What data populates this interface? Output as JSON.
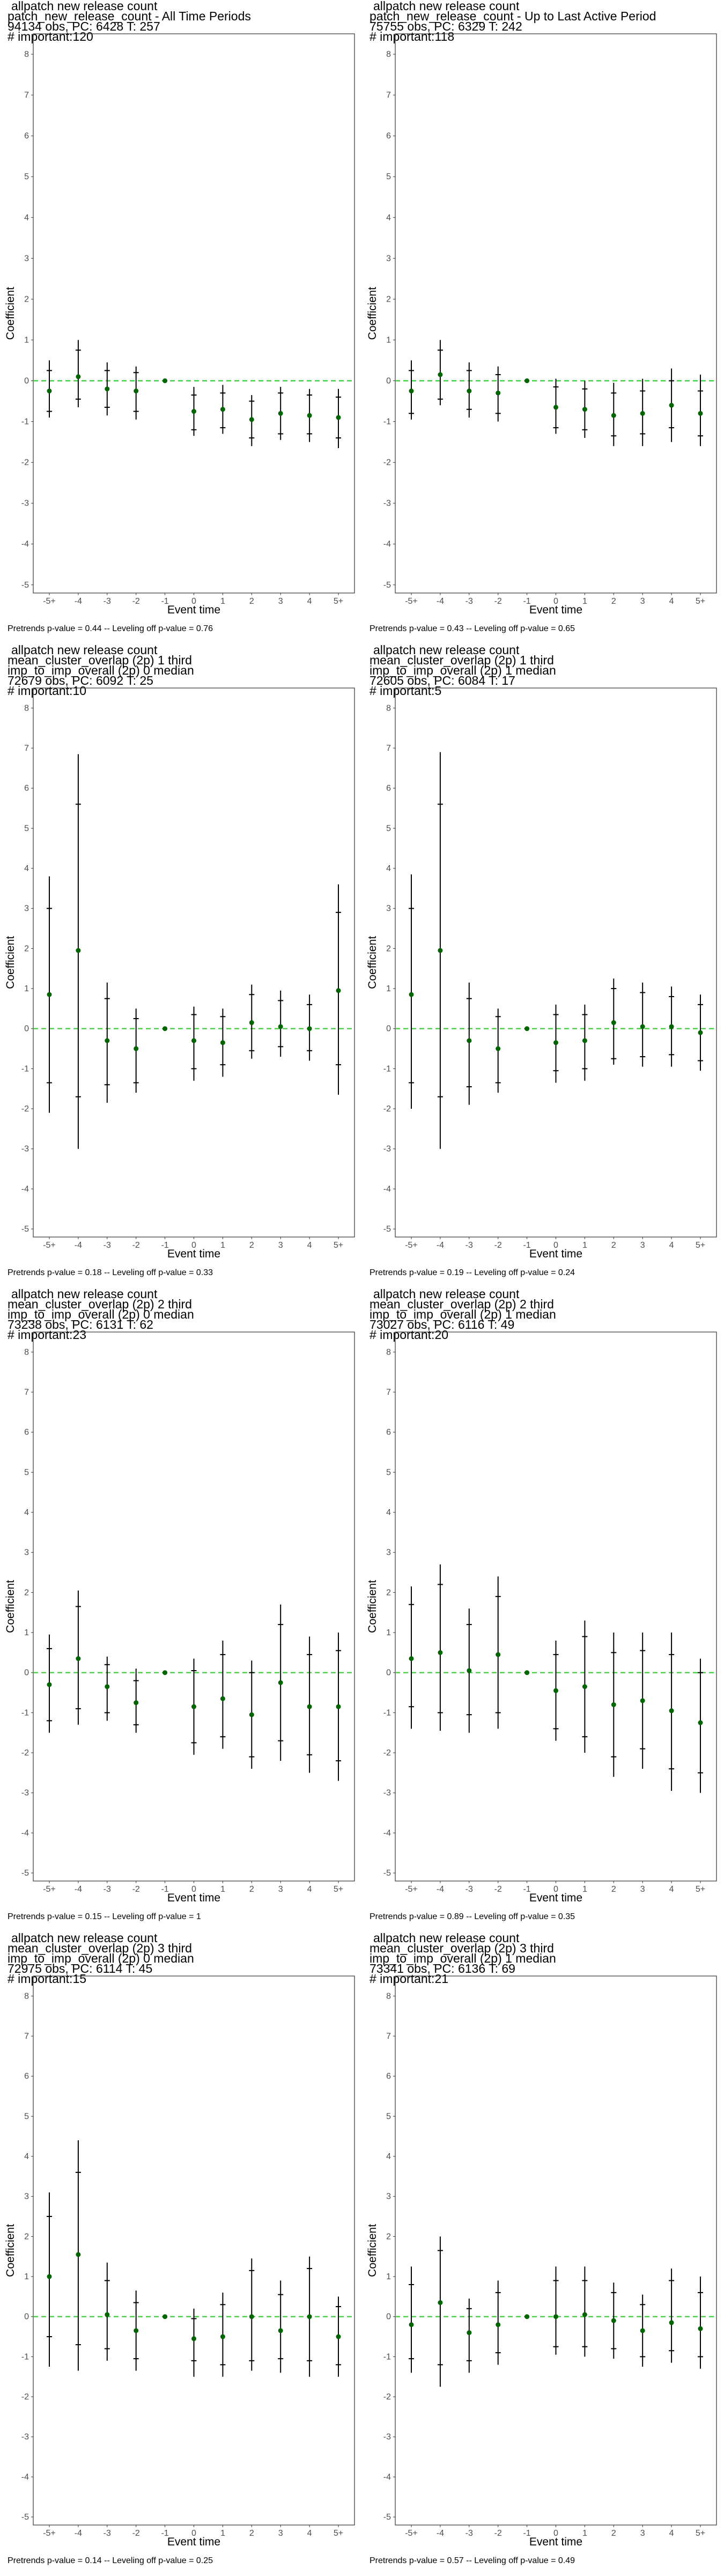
{
  "chart_data": [
    {
      "type": "scatter",
      "title_lines": [
        "allpatch new release count",
        "patch_new_release_count - All Time Periods",
        "94134 obs, PC: 6428 T: 257",
        "# important:120"
      ],
      "xlabel": "Event time",
      "ylabel": "Coefficient",
      "x": [
        "-5+",
        "-4",
        "-3",
        "-2",
        "-1",
        "0",
        "1",
        "2",
        "3",
        "4",
        "5+"
      ],
      "y": [
        -0.25,
        0.1,
        -0.2,
        -0.25,
        0.0,
        -0.75,
        -0.7,
        -0.95,
        -0.8,
        -0.85,
        -0.9
      ],
      "ci_outer": [
        [
          -0.9,
          0.5
        ],
        [
          -0.65,
          1.0
        ],
        [
          -0.85,
          0.45
        ],
        [
          -0.95,
          0.35
        ],
        [
          0,
          0
        ],
        [
          -1.35,
          -0.15
        ],
        [
          -1.3,
          -0.1
        ],
        [
          -1.6,
          -0.35
        ],
        [
          -1.45,
          -0.15
        ],
        [
          -1.5,
          -0.2
        ],
        [
          -1.65,
          -0.2
        ]
      ],
      "ci_inner": [
        [
          -0.75,
          0.25
        ],
        [
          -0.45,
          0.75
        ],
        [
          -0.65,
          0.25
        ],
        [
          -0.75,
          0.2
        ],
        [
          0,
          0
        ],
        [
          -1.2,
          -0.35
        ],
        [
          -1.15,
          -0.3
        ],
        [
          -1.4,
          -0.5
        ],
        [
          -1.3,
          -0.3
        ],
        [
          -1.3,
          -0.35
        ],
        [
          -1.4,
          -0.4
        ]
      ],
      "ylim": [
        -5.2,
        8.5
      ],
      "yticks": [
        -5,
        -4,
        -3,
        -2,
        -1,
        0,
        1,
        2,
        3,
        4,
        5,
        6,
        7,
        8
      ],
      "hline": 0,
      "hline_color": "#33cc33",
      "point_color": "#006400",
      "footer": "Pretrends p-value = 0.44 -- Leveling off p-value = 0.76"
    },
    {
      "type": "scatter",
      "title_lines": [
        "allpatch new release count",
        "patch_new_release_count - Up to Last Active Period",
        "75755 obs, PC: 6329 T: 242",
        "# important:118"
      ],
      "xlabel": "Event time",
      "ylabel": "Coefficient",
      "x": [
        "-5+",
        "-4",
        "-3",
        "-2",
        "-1",
        "0",
        "1",
        "2",
        "3",
        "4",
        "5+"
      ],
      "y": [
        -0.25,
        0.15,
        -0.25,
        -0.3,
        0.0,
        -0.65,
        -0.7,
        -0.85,
        -0.8,
        -0.6,
        -0.8
      ],
      "ci_outer": [
        [
          -0.95,
          0.5
        ],
        [
          -0.6,
          1.0
        ],
        [
          -0.9,
          0.45
        ],
        [
          -1.0,
          0.35
        ],
        [
          0,
          0
        ],
        [
          -1.3,
          0.05
        ],
        [
          -1.4,
          0.0
        ],
        [
          -1.6,
          -0.05
        ],
        [
          -1.6,
          0.05
        ],
        [
          -1.5,
          0.3
        ],
        [
          -1.6,
          0.15
        ]
      ],
      "ci_inner": [
        [
          -0.8,
          0.25
        ],
        [
          -0.45,
          0.75
        ],
        [
          -0.7,
          0.25
        ],
        [
          -0.8,
          0.15
        ],
        [
          0,
          0
        ],
        [
          -1.15,
          -0.15
        ],
        [
          -1.2,
          -0.2
        ],
        [
          -1.35,
          -0.3
        ],
        [
          -1.3,
          -0.25
        ],
        [
          -1.15,
          0.0
        ],
        [
          -1.35,
          -0.25
        ]
      ],
      "ylim": [
        -5.2,
        8.5
      ],
      "yticks": [
        -5,
        -4,
        -3,
        -2,
        -1,
        0,
        1,
        2,
        3,
        4,
        5,
        6,
        7,
        8
      ],
      "hline": 0,
      "hline_color": "#33cc33",
      "point_color": "#006400",
      "footer": "Pretrends p-value = 0.43 -- Leveling off p-value = 0.65"
    },
    {
      "type": "scatter",
      "title_lines": [
        "allpatch new release count",
        "mean_cluster_overlap (2p) 1 third",
        "imp_to_imp_overall (2p) 0 median",
        "72679 obs, PC: 6092 T: 25",
        "# important:10"
      ],
      "xlabel": "Event time",
      "ylabel": "Coefficient",
      "x": [
        "-5+",
        "-4",
        "-3",
        "-2",
        "-1",
        "0",
        "1",
        "2",
        "3",
        "4",
        "5+"
      ],
      "y": [
        0.85,
        1.95,
        -0.3,
        -0.5,
        0.0,
        -0.3,
        -0.35,
        0.15,
        0.05,
        0.0,
        0.95
      ],
      "ci_outer": [
        [
          -2.1,
          3.8
        ],
        [
          -3.0,
          6.85
        ],
        [
          -1.85,
          1.15
        ],
        [
          -1.6,
          0.5
        ],
        [
          0,
          0
        ],
        [
          -1.3,
          0.55
        ],
        [
          -1.2,
          0.5
        ],
        [
          -0.75,
          1.1
        ],
        [
          -0.7,
          0.95
        ],
        [
          -0.8,
          0.85
        ],
        [
          -1.65,
          3.6
        ]
      ],
      "ci_inner": [
        [
          -1.35,
          3.0
        ],
        [
          -1.7,
          5.6
        ],
        [
          -1.4,
          0.75
        ],
        [
          -1.35,
          0.25
        ],
        [
          0,
          0
        ],
        [
          -1.0,
          0.35
        ],
        [
          -0.9,
          0.3
        ],
        [
          -0.55,
          0.85
        ],
        [
          -0.45,
          0.7
        ],
        [
          -0.55,
          0.6
        ],
        [
          -0.9,
          2.9
        ]
      ],
      "ylim": [
        -5.2,
        8.5
      ],
      "yticks": [
        -5,
        -4,
        -3,
        -2,
        -1,
        0,
        1,
        2,
        3,
        4,
        5,
        6,
        7,
        8
      ],
      "hline": 0,
      "hline_color": "#33cc33",
      "point_color": "#006400",
      "footer": "Pretrends p-value = 0.18 -- Leveling off p-value = 0.33"
    },
    {
      "type": "scatter",
      "title_lines": [
        "allpatch new release count",
        "mean_cluster_overlap (2p) 1 third",
        "imp_to_imp_overall (2p) 1 median",
        "72605 obs, PC: 6084 T: 17",
        "# important:5"
      ],
      "xlabel": "Event time",
      "ylabel": "Coefficient",
      "x": [
        "-5+",
        "-4",
        "-3",
        "-2",
        "-1",
        "0",
        "1",
        "2",
        "3",
        "4",
        "5+"
      ],
      "y": [
        0.85,
        1.95,
        -0.3,
        -0.5,
        0.0,
        -0.35,
        -0.3,
        0.15,
        0.05,
        0.05,
        -0.1
      ],
      "ci_outer": [
        [
          -2.0,
          3.85
        ],
        [
          -3.0,
          6.9
        ],
        [
          -1.9,
          1.15
        ],
        [
          -1.6,
          0.5
        ],
        [
          0,
          0
        ],
        [
          -1.35,
          0.6
        ],
        [
          -1.3,
          0.6
        ],
        [
          -0.9,
          1.25
        ],
        [
          -0.95,
          1.15
        ],
        [
          -0.95,
          1.05
        ],
        [
          -1.05,
          0.85
        ]
      ],
      "ci_inner": [
        [
          -1.35,
          3.0
        ],
        [
          -1.7,
          5.6
        ],
        [
          -1.45,
          0.75
        ],
        [
          -1.35,
          0.3
        ],
        [
          0,
          0
        ],
        [
          -1.05,
          0.35
        ],
        [
          -1.0,
          0.35
        ],
        [
          -0.75,
          1.0
        ],
        [
          -0.7,
          0.9
        ],
        [
          -0.65,
          0.8
        ],
        [
          -0.8,
          0.6
        ]
      ],
      "ylim": [
        -5.2,
        8.5
      ],
      "yticks": [
        -5,
        -4,
        -3,
        -2,
        -1,
        0,
        1,
        2,
        3,
        4,
        5,
        6,
        7,
        8
      ],
      "hline": 0,
      "hline_color": "#33cc33",
      "point_color": "#006400",
      "footer": "Pretrends p-value = 0.19 -- Leveling off p-value = 0.24"
    },
    {
      "type": "scatter",
      "title_lines": [
        "allpatch new release count",
        "mean_cluster_overlap (2p) 2 third",
        "imp_to_imp_overall (2p) 0 median",
        "73238 obs, PC: 6131 T: 62",
        "# important:23"
      ],
      "xlabel": "Event time",
      "ylabel": "Coefficient",
      "x": [
        "-5+",
        "-4",
        "-3",
        "-2",
        "-1",
        "0",
        "1",
        "2",
        "3",
        "4",
        "5+"
      ],
      "y": [
        -0.3,
        0.35,
        -0.35,
        -0.75,
        0.0,
        -0.85,
        -0.65,
        -1.05,
        -0.25,
        -0.85,
        -0.85
      ],
      "ci_outer": [
        [
          -1.5,
          0.95
        ],
        [
          -1.3,
          2.05
        ],
        [
          -1.2,
          0.4
        ],
        [
          -1.5,
          0.1
        ],
        [
          0,
          0
        ],
        [
          -2.05,
          0.35
        ],
        [
          -1.9,
          0.8
        ],
        [
          -2.4,
          0.3
        ],
        [
          -2.2,
          1.7
        ],
        [
          -2.5,
          0.9
        ],
        [
          -2.7,
          1.0
        ]
      ],
      "ci_inner": [
        [
          -1.2,
          0.6
        ],
        [
          -0.9,
          1.65
        ],
        [
          -1.0,
          0.2
        ],
        [
          -1.3,
          -0.2
        ],
        [
          0,
          0
        ],
        [
          -1.75,
          0.05
        ],
        [
          -1.6,
          0.45
        ],
        [
          -2.1,
          0.0
        ],
        [
          -1.7,
          1.2
        ],
        [
          -2.05,
          0.45
        ],
        [
          -2.2,
          0.55
        ]
      ],
      "ylim": [
        -5.2,
        8.5
      ],
      "yticks": [
        -5,
        -4,
        -3,
        -2,
        -1,
        0,
        1,
        2,
        3,
        4,
        5,
        6,
        7,
        8
      ],
      "hline": 0,
      "hline_color": "#33cc33",
      "point_color": "#006400",
      "footer": "Pretrends p-value = 0.15 -- Leveling off p-value = 1"
    },
    {
      "type": "scatter",
      "title_lines": [
        "allpatch new release count",
        "mean_cluster_overlap (2p) 2 third",
        "imp_to_imp_overall (2p) 1 median",
        "73027 obs, PC: 6116 T: 49",
        "# important:20"
      ],
      "xlabel": "Event time",
      "ylabel": "Coefficient",
      "x": [
        "-5+",
        "-4",
        "-3",
        "-2",
        "-1",
        "0",
        "1",
        "2",
        "3",
        "4",
        "5+"
      ],
      "y": [
        0.35,
        0.5,
        0.05,
        0.45,
        0.0,
        -0.45,
        -0.35,
        -0.8,
        -0.7,
        -0.95,
        -1.25
      ],
      "ci_outer": [
        [
          -1.4,
          2.15
        ],
        [
          -1.45,
          2.7
        ],
        [
          -1.5,
          1.6
        ],
        [
          -1.4,
          2.4
        ],
        [
          0,
          0
        ],
        [
          -1.7,
          0.8
        ],
        [
          -2.0,
          1.3
        ],
        [
          -2.6,
          1.0
        ],
        [
          -2.4,
          1.0
        ],
        [
          -2.95,
          1.0
        ],
        [
          -3.0,
          0.35
        ]
      ],
      "ci_inner": [
        [
          -0.85,
          1.7
        ],
        [
          -1.0,
          2.2
        ],
        [
          -1.05,
          1.2
        ],
        [
          -1.0,
          1.9
        ],
        [
          0,
          0
        ],
        [
          -1.4,
          0.45
        ],
        [
          -1.6,
          0.9
        ],
        [
          -2.1,
          0.5
        ],
        [
          -1.9,
          0.55
        ],
        [
          -2.4,
          0.45
        ],
        [
          -2.5,
          0.0
        ]
      ],
      "ylim": [
        -5.2,
        8.5
      ],
      "yticks": [
        -5,
        -4,
        -3,
        -2,
        -1,
        0,
        1,
        2,
        3,
        4,
        5,
        6,
        7,
        8
      ],
      "hline": 0,
      "hline_color": "#33cc33",
      "point_color": "#006400",
      "footer": "Pretrends p-value = 0.89 -- Leveling off p-value = 0.35"
    },
    {
      "type": "scatter",
      "title_lines": [
        "allpatch new release count",
        "mean_cluster_overlap (2p) 3 third",
        "imp_to_imp_overall (2p) 0 median",
        "72975 obs, PC: 6114 T: 45",
        "# important:15"
      ],
      "xlabel": "Event time",
      "ylabel": "Coefficient",
      "x": [
        "-5+",
        "-4",
        "-3",
        "-2",
        "-1",
        "0",
        "1",
        "2",
        "3",
        "4",
        "5+"
      ],
      "y": [
        1.0,
        1.55,
        0.05,
        -0.35,
        0.0,
        -0.55,
        -0.5,
        0.0,
        -0.35,
        0.0,
        -0.5
      ],
      "ci_outer": [
        [
          -1.25,
          3.1
        ],
        [
          -1.35,
          4.4
        ],
        [
          -1.1,
          1.35
        ],
        [
          -1.35,
          0.65
        ],
        [
          0,
          0
        ],
        [
          -1.5,
          0.2
        ],
        [
          -1.5,
          0.6
        ],
        [
          -1.35,
          1.45
        ],
        [
          -1.4,
          0.9
        ],
        [
          -1.5,
          1.5
        ],
        [
          -1.5,
          0.5
        ]
      ],
      "ci_inner": [
        [
          -0.5,
          2.5
        ],
        [
          -0.7,
          3.6
        ],
        [
          -0.8,
          0.9
        ],
        [
          -1.05,
          0.35
        ],
        [
          0,
          0
        ],
        [
          -1.1,
          -0.05
        ],
        [
          -1.2,
          0.3
        ],
        [
          -1.1,
          1.15
        ],
        [
          -1.05,
          0.55
        ],
        [
          -1.1,
          1.2
        ],
        [
          -1.2,
          0.25
        ]
      ],
      "ylim": [
        -5.2,
        8.5
      ],
      "yticks": [
        -5,
        -4,
        -3,
        -2,
        -1,
        0,
        1,
        2,
        3,
        4,
        5,
        6,
        7,
        8
      ],
      "hline": 0,
      "hline_color": "#33cc33",
      "point_color": "#006400",
      "footer": "Pretrends p-value = 0.14 -- Leveling off p-value = 0.25"
    },
    {
      "type": "scatter",
      "title_lines": [
        "allpatch new release count",
        "mean_cluster_overlap (2p) 3 third",
        "imp_to_imp_overall (2p) 1 median",
        "73341 obs, PC: 6136 T: 69",
        "# important:21"
      ],
      "xlabel": "Event time",
      "ylabel": "Coefficient",
      "x": [
        "-5+",
        "-4",
        "-3",
        "-2",
        "-1",
        "0",
        "1",
        "2",
        "3",
        "4",
        "5+"
      ],
      "y": [
        -0.2,
        0.35,
        -0.4,
        -0.2,
        0.0,
        0.0,
        0.05,
        -0.1,
        -0.35,
        -0.15,
        -0.3
      ],
      "ci_outer": [
        [
          -1.4,
          1.25
        ],
        [
          -1.75,
          2.0
        ],
        [
          -1.4,
          0.45
        ],
        [
          -1.2,
          0.9
        ],
        [
          0,
          0
        ],
        [
          -0.95,
          1.25
        ],
        [
          -1.0,
          1.25
        ],
        [
          -1.05,
          0.85
        ],
        [
          -1.25,
          0.55
        ],
        [
          -1.15,
          1.2
        ],
        [
          -1.3,
          1.0
        ]
      ],
      "ci_inner": [
        [
          -1.05,
          0.8
        ],
        [
          -1.2,
          1.65
        ],
        [
          -1.1,
          0.2
        ],
        [
          -0.9,
          0.6
        ],
        [
          0,
          0
        ],
        [
          -0.75,
          0.9
        ],
        [
          -0.75,
          0.9
        ],
        [
          -0.8,
          0.6
        ],
        [
          -1.0,
          0.3
        ],
        [
          -0.85,
          0.9
        ],
        [
          -1.0,
          0.6
        ]
      ],
      "ylim": [
        -5.2,
        8.5
      ],
      "yticks": [
        -5,
        -4,
        -3,
        -2,
        -1,
        0,
        1,
        2,
        3,
        4,
        5,
        6,
        7,
        8
      ],
      "hline": 0,
      "hline_color": "#33cc33",
      "point_color": "#006400",
      "footer": "Pretrends p-value = 0.57 -- Leveling off p-value = 0.49"
    }
  ]
}
